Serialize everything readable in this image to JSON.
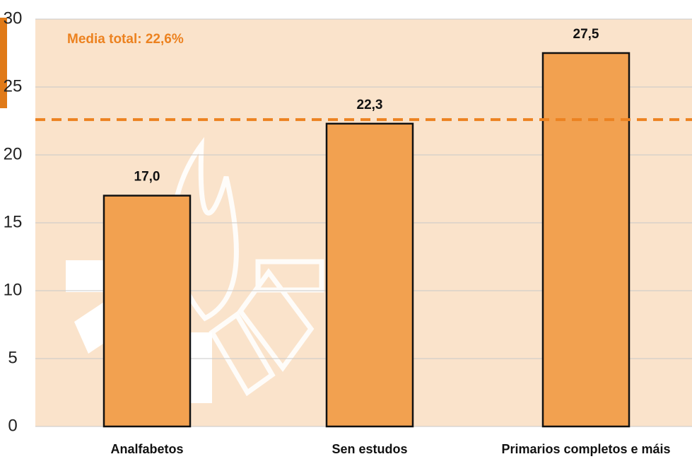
{
  "chart_data": {
    "type": "bar",
    "categories": [
      "Analfabetos",
      "Sen estudos",
      "Primarios completos e máis"
    ],
    "values": [
      17.0,
      22.3,
      27.5
    ],
    "value_labels": [
      "17,0",
      "22,3",
      "27,5"
    ],
    "color": "#f2a150",
    "ylim": [
      0,
      30
    ],
    "yticks": [
      0,
      5,
      10,
      15,
      20,
      25,
      30
    ],
    "grid": true,
    "mean_line": {
      "value": 22.6,
      "label": "Media total: 22,6%",
      "color": "#ec8220"
    }
  }
}
